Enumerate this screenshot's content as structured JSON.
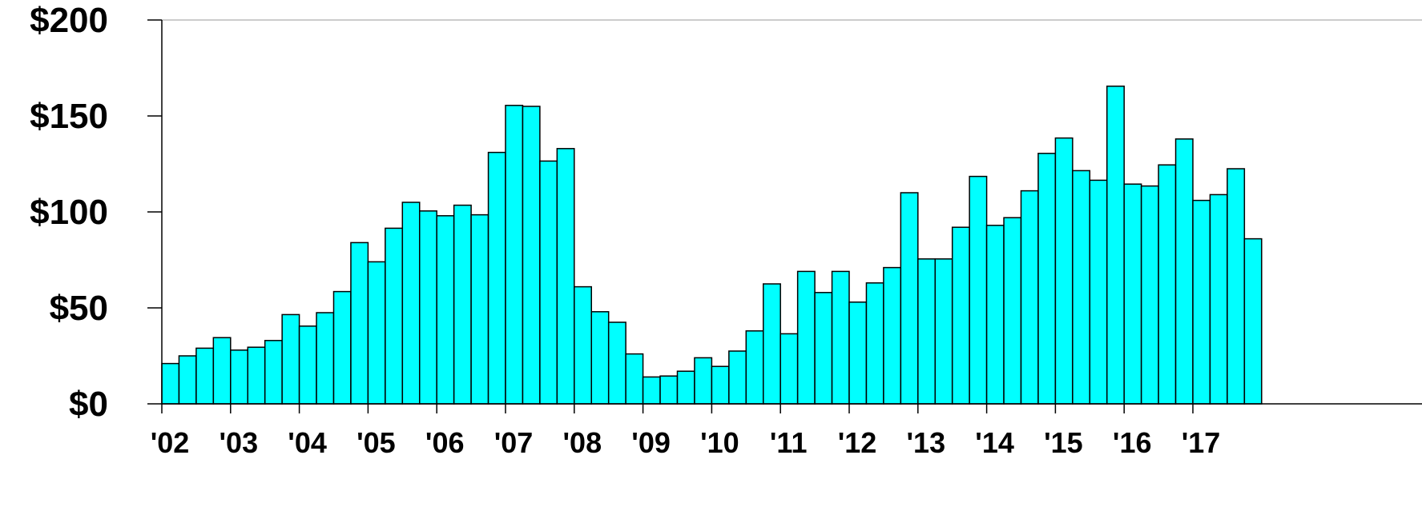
{
  "colors": {
    "bar_fill": "#00ffff",
    "bar_stroke": "#000000",
    "axis": "#000000",
    "grid": "#999999"
  },
  "chart_data": {
    "type": "bar",
    "title": "",
    "xlabel": "",
    "ylabel": "",
    "ylim": [
      0,
      200
    ],
    "yticks": [
      0,
      50,
      100,
      150,
      200
    ],
    "ytick_labels": [
      "$0",
      "$50",
      "$100",
      "$150",
      "$200"
    ],
    "xtick_labels": [
      "'02",
      "'03",
      "'04",
      "'05",
      "'06",
      "'07",
      "'08",
      "'09",
      "'10",
      "'11",
      "'12",
      "'13",
      "'14",
      "'15",
      "'16",
      "'17"
    ],
    "bars_per_year": 4,
    "grid": "top line only",
    "legend": "none",
    "categories": [
      "Q1 '02",
      "Q2 '02",
      "Q3 '02",
      "Q4 '02",
      "Q1 '03",
      "Q2 '03",
      "Q3 '03",
      "Q4 '03",
      "Q1 '04",
      "Q2 '04",
      "Q3 '04",
      "Q4 '04",
      "Q1 '05",
      "Q2 '05",
      "Q3 '05",
      "Q4 '05",
      "Q1 '06",
      "Q2 '06",
      "Q3 '06",
      "Q4 '06",
      "Q1 '07",
      "Q2 '07",
      "Q3 '07",
      "Q4 '07",
      "Q1 '08",
      "Q2 '08",
      "Q3 '08",
      "Q4 '08",
      "Q1 '09",
      "Q2 '09",
      "Q3 '09",
      "Q4 '09",
      "Q1 '10",
      "Q2 '10",
      "Q3 '10",
      "Q4 '10",
      "Q1 '11",
      "Q2 '11",
      "Q3 '11",
      "Q4 '11",
      "Q1 '12",
      "Q2 '12",
      "Q3 '12",
      "Q4 '12",
      "Q1 '13",
      "Q2 '13",
      "Q3 '13",
      "Q4 '13",
      "Q1 '14",
      "Q2 '14",
      "Q3 '14",
      "Q4 '14",
      "Q1 '15",
      "Q2 '15",
      "Q3 '15",
      "Q4 '15",
      "Q1 '16",
      "Q2 '16",
      "Q3 '16",
      "Q4 '16",
      "Q1 '17",
      "Q2 '17",
      "Q3 '17",
      "Q4 '17"
    ],
    "values": [
      21,
      25,
      29,
      34.5,
      28,
      29.5,
      33,
      46.5,
      40.5,
      47.5,
      58.5,
      84,
      74,
      91.5,
      105,
      100.5,
      98,
      103.5,
      98.5,
      131,
      155.5,
      155,
      126.5,
      133,
      61,
      48,
      42.5,
      26,
      14,
      14.5,
      17,
      24,
      19.5,
      27.5,
      38,
      62.5,
      36.5,
      69,
      58,
      69,
      53,
      63,
      71,
      110,
      75.5,
      75.5,
      92,
      118.5,
      93,
      97,
      111,
      130.5,
      138.5,
      121.5,
      116.5,
      165.5,
      114.5,
      113.5,
      124.5,
      138,
      106,
      109,
      122.5,
      86
    ]
  }
}
